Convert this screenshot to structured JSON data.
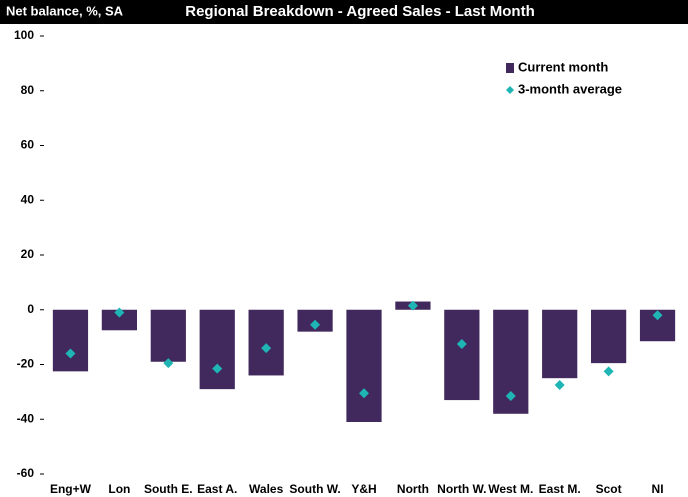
{
  "chart_data": {
    "type": "bar",
    "title": "Regional Breakdown - Agreed Sales - Last Month",
    "y_label": "Net balance, %, SA",
    "categories": [
      "Eng+W",
      "Lon",
      "South E.",
      "East A.",
      "Wales",
      "South W.",
      "Y&H",
      "North",
      "North W.",
      "West M.",
      "East M.",
      "Scot",
      "NI"
    ],
    "series": [
      {
        "name": "Current month",
        "color": "#41295e",
        "type": "bar",
        "values": [
          -22.5,
          -7.5,
          -19,
          -29,
          -24,
          -8,
          -41,
          3,
          -33,
          -38,
          -25,
          -19.5,
          -11.5
        ]
      },
      {
        "name": "3-month average",
        "color": "#1fb5b5",
        "type": "scatter",
        "values": [
          -16,
          -1,
          -19.5,
          -21.5,
          -14,
          -5.5,
          -30.5,
          1.5,
          -12.5,
          -31.5,
          -27.5,
          -22.5,
          -2
        ]
      }
    ],
    "ylim": [
      -60,
      100
    ],
    "yticks": [
      -60,
      -40,
      -20,
      0,
      20,
      40,
      60,
      80,
      100
    ],
    "grid": false,
    "legend": "top-right"
  }
}
